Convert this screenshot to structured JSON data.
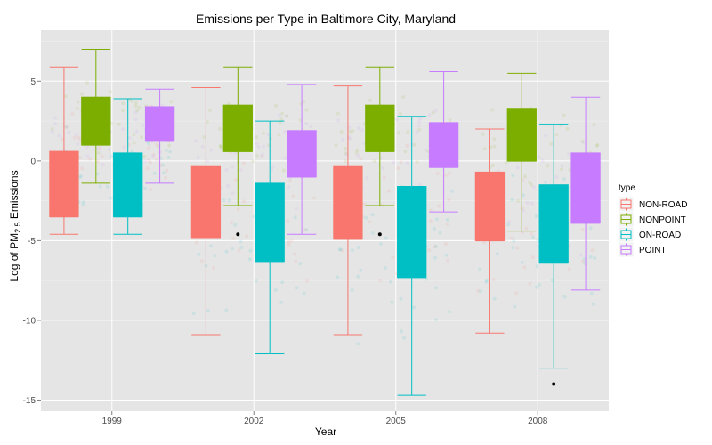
{
  "chart_data": {
    "type": "boxplot",
    "title": "Emissions per Type in Baltimore City, Maryland",
    "xlabel": "Year",
    "ylabel": {
      "main": "Log of PM",
      "sub": "2.5",
      "rest": " Emissions"
    },
    "categories": [
      "1999",
      "2002",
      "2005",
      "2008"
    ],
    "ylim": [
      -15.7,
      8.2
    ],
    "yticks": [
      5,
      0,
      -5,
      -10,
      -15
    ],
    "grid": true,
    "legend": {
      "title": "type",
      "position": "right"
    },
    "series": [
      {
        "name": "NON-ROAD",
        "fill": "#F8766D",
        "stroke": "#F8766D",
        "boxes": [
          {
            "min": -4.6,
            "q1": -3.5,
            "median": -3.5,
            "q3": 0.6,
            "max": 5.9,
            "outliers": []
          },
          {
            "min": -10.9,
            "q1": -4.8,
            "median": -4.8,
            "q3": -0.3,
            "max": 4.6,
            "outliers": []
          },
          {
            "min": -10.9,
            "q1": -4.9,
            "median": -4.9,
            "q3": -0.3,
            "max": 4.7,
            "outliers": []
          },
          {
            "min": -10.8,
            "q1": -5.0,
            "median": -5.0,
            "q3": -0.7,
            "max": 2.0,
            "outliers": []
          }
        ]
      },
      {
        "name": "NONPOINT",
        "fill": "#7CAE00",
        "stroke": "#7CAE00",
        "boxes": [
          {
            "min": -1.4,
            "q1": 1.0,
            "median": 1.0,
            "q3": 4.0,
            "max": 7.0,
            "outliers": []
          },
          {
            "min": -2.8,
            "q1": 0.6,
            "median": 0.6,
            "q3": 3.5,
            "max": 5.9,
            "outliers": [
              -4.6
            ]
          },
          {
            "min": -2.8,
            "q1": 0.6,
            "median": 0.6,
            "q3": 3.5,
            "max": 5.9,
            "outliers": [
              -4.6
            ]
          },
          {
            "min": -4.4,
            "q1": 0.0,
            "median": 0.0,
            "q3": 3.3,
            "max": 5.5,
            "outliers": []
          }
        ]
      },
      {
        "name": "ON-ROAD",
        "fill": "#00BFC4",
        "stroke": "#00BFC4",
        "boxes": [
          {
            "min": -4.6,
            "q1": -3.5,
            "median": -3.5,
            "q3": 0.5,
            "max": 3.9,
            "outliers": []
          },
          {
            "min": -12.1,
            "q1": -6.3,
            "median": -6.3,
            "q3": -1.4,
            "max": 2.5,
            "outliers": []
          },
          {
            "min": -14.7,
            "q1": -7.3,
            "median": -7.3,
            "q3": -1.6,
            "max": 2.8,
            "outliers": []
          },
          {
            "min": -13.0,
            "q1": -6.4,
            "median": -6.4,
            "q3": -1.5,
            "max": 2.3,
            "outliers": [
              -14.0
            ]
          }
        ]
      },
      {
        "name": "POINT",
        "fill": "#C77CFF",
        "stroke": "#C77CFF",
        "boxes": [
          {
            "min": -1.4,
            "q1": 1.3,
            "median": 1.3,
            "q3": 3.4,
            "max": 4.5,
            "outliers": []
          },
          {
            "min": -4.6,
            "q1": -1.0,
            "median": -1.0,
            "q3": 1.9,
            "max": 4.8,
            "outliers": []
          },
          {
            "min": -3.2,
            "q1": -0.4,
            "median": -0.4,
            "q3": 2.4,
            "max": 5.6,
            "outliers": []
          },
          {
            "min": -8.1,
            "q1": -3.9,
            "median": -3.9,
            "q3": 0.5,
            "max": 4.0,
            "outliers": []
          }
        ]
      }
    ]
  }
}
